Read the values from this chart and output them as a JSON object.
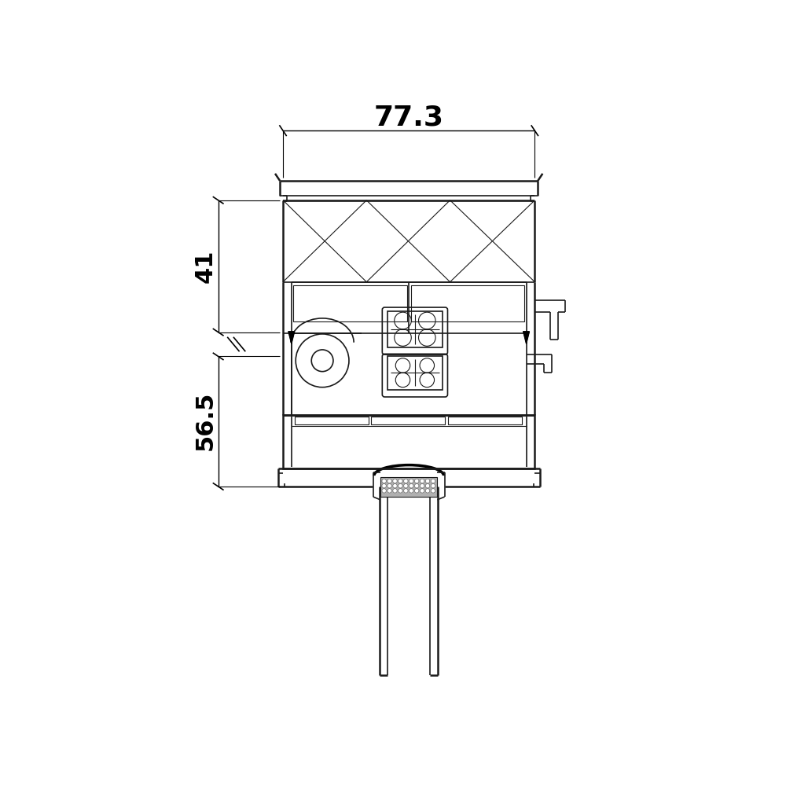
{
  "bg_color": "#ffffff",
  "lc": "#1a1a1a",
  "lw_thick": 1.8,
  "lw_med": 1.2,
  "lw_thin": 0.8,
  "dim_77_3": "77.3",
  "dim_41": "41",
  "dim_56_5": "56.5",
  "fig_width": 10.0,
  "fig_height": 10.0,
  "xlim": [
    0,
    1000
  ],
  "ylim": [
    0,
    1000
  ]
}
